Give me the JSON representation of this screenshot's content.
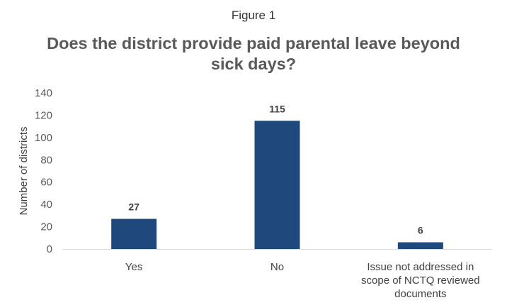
{
  "figure_label": "Figure 1",
  "chart_data": {
    "type": "bar",
    "title": "Does the district provide paid parental leave beyond sick days?",
    "ylabel": "Number of districts",
    "xlabel": "",
    "categories": [
      [
        "Yes"
      ],
      [
        "No"
      ],
      [
        "Issue not addressed in",
        "scope of NCTQ reviewed",
        "documents"
      ]
    ],
    "values": [
      27,
      115,
      6
    ],
    "ylim": [
      0,
      140
    ],
    "yticks": [
      0,
      20,
      40,
      60,
      80,
      100,
      120,
      140
    ],
    "bar_color": "#1F497D",
    "grid": false,
    "legend": "none"
  }
}
